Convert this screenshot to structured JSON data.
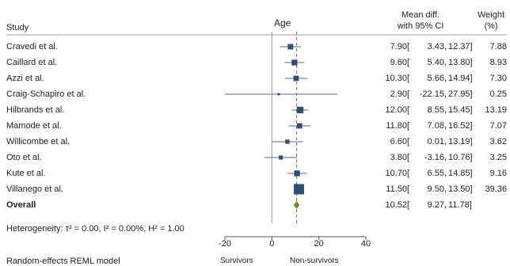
{
  "chart_data": {
    "type": "forest",
    "title": "Age",
    "header": {
      "study": "Study",
      "effect_line1": "Mean diff.",
      "effect_line2": "with 95% CI",
      "weight_line1": "Weight",
      "weight_line2": "(%)"
    },
    "studies": [
      {
        "name": "Cravedi et al.",
        "est": 7.9,
        "lo": 3.43,
        "hi": 12.37,
        "weight": 7.88,
        "est_text": "7.90",
        "lo_text": "3.43,",
        "hi_text": "12.37]",
        "weight_text": "7.88"
      },
      {
        "name": "Caillard et al.",
        "est": 9.6,
        "lo": 5.4,
        "hi": 13.8,
        "weight": 8.93,
        "est_text": "9.60",
        "lo_text": "5.40,",
        "hi_text": "13.80]",
        "weight_text": "8.93"
      },
      {
        "name": "Azzi et al.",
        "est": 10.3,
        "lo": 5.66,
        "hi": 14.94,
        "weight": 7.3,
        "est_text": "10.30",
        "lo_text": "5.66,",
        "hi_text": "14.94]",
        "weight_text": "7.30"
      },
      {
        "name": "Craig-Schapiro et al.",
        "est": 2.9,
        "lo": -22.15,
        "hi": 27.95,
        "weight": 0.25,
        "est_text": "2.90",
        "lo_text": "-22.15,",
        "hi_text": "27.95]",
        "weight_text": "0.25"
      },
      {
        "name": "Hilbrands et al.",
        "est": 12.0,
        "lo": 8.55,
        "hi": 15.45,
        "weight": 13.19,
        "est_text": "12.00",
        "lo_text": "8.55,",
        "hi_text": "15.45]",
        "weight_text": "13.19"
      },
      {
        "name": "Mamode et al.",
        "est": 11.8,
        "lo": 7.08,
        "hi": 16.52,
        "weight": 7.07,
        "est_text": "11.80",
        "lo_text": "7.08,",
        "hi_text": "16.52]",
        "weight_text": "7.07"
      },
      {
        "name": "Willicombe et al.",
        "est": 6.6,
        "lo": 0.01,
        "hi": 13.19,
        "weight": 3.62,
        "est_text": "6.60",
        "lo_text": "0.01,",
        "hi_text": "13.19]",
        "weight_text": "3.62"
      },
      {
        "name": "Oto et al.",
        "est": 3.8,
        "lo": -3.16,
        "hi": 10.76,
        "weight": 3.25,
        "est_text": "3.80",
        "lo_text": "-3.16,",
        "hi_text": "10.76]",
        "weight_text": "3.25"
      },
      {
        "name": "Kute et al.",
        "est": 10.7,
        "lo": 6.55,
        "hi": 14.85,
        "weight": 9.16,
        "est_text": "10.70",
        "lo_text": "6.55,",
        "hi_text": "14.85]",
        "weight_text": "9.16"
      },
      {
        "name": "Villanego et al.",
        "est": 11.5,
        "lo": 9.5,
        "hi": 13.5,
        "weight": 39.36,
        "est_text": "11.50",
        "lo_text": "9.50,",
        "hi_text": "13.50]",
        "weight_text": "39.36"
      }
    ],
    "overall": {
      "name": "Overall",
      "est": 10.52,
      "lo": 9.27,
      "hi": 11.78,
      "est_text": "10.52",
      "lo_text": "9.27,",
      "hi_text": "11.78]"
    },
    "ci_open": "[",
    "heterogeneity": "Heterogeneity: τ² = 0.00, I² = 0.00%, H² = 1.00",
    "xaxis": {
      "range": [
        -20,
        40
      ],
      "ticks": [
        -20,
        0,
        20,
        40
      ]
    },
    "reference_line": 0,
    "pooled_line": 10.52,
    "left_label": "Survivors",
    "right_label": "Non-survivors",
    "model_note": "Random-effects REML model",
    "colors": {
      "marker": "#2f4f75",
      "ci": "#4a6d94",
      "diamond": "#6b8e23",
      "pooled": "#d9534f",
      "axis": "#555555"
    }
  }
}
